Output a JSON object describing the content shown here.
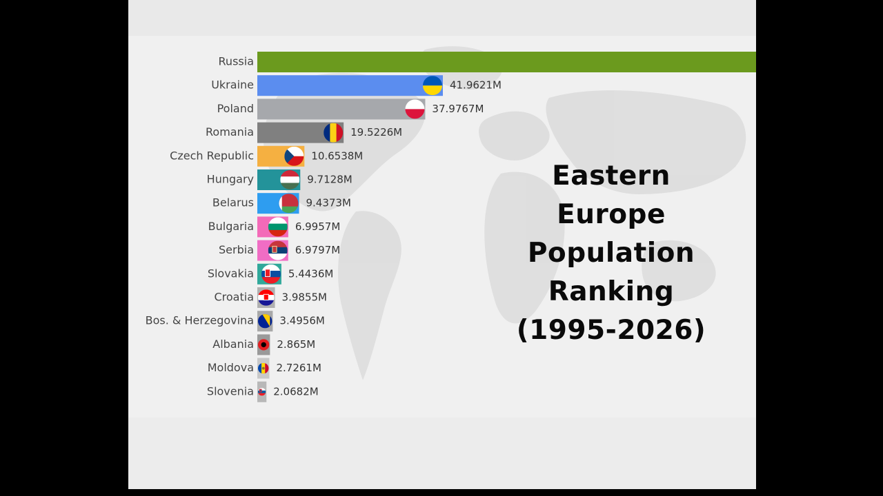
{
  "title_lines": [
    "Eastern",
    "Europe",
    "Population",
    "Ranking",
    "(1995-2026)"
  ],
  "chart_data": {
    "type": "bar",
    "orientation": "horizontal",
    "title": "Eastern Europe Population Ranking (1995-2026)",
    "value_unit": "M",
    "categories": [
      "Russia",
      "Ukraine",
      "Poland",
      "Romania",
      "Czech Republic",
      "Hungary",
      "Belarus",
      "Bulgaria",
      "Serbia",
      "Slovakia",
      "Croatia",
      "Bos. & Herzegovina",
      "Albania",
      "Moldova",
      "Slovenia"
    ],
    "values": [
      null,
      41.9621,
      37.9767,
      19.5226,
      10.6538,
      9.7128,
      9.4373,
      6.9957,
      6.9797,
      5.4436,
      3.9855,
      3.4956,
      2.865,
      2.7261,
      2.0682
    ],
    "value_labels": [
      "",
      "41.9621M",
      "37.9767M",
      "19.5226M",
      "10.6538M",
      "9.7128M",
      "9.4373M",
      "6.9957M",
      "6.9797M",
      "5.4436M",
      "3.9855M",
      "3.4956M",
      "2.865M",
      "2.7261M",
      "2.0682M"
    ],
    "colors": [
      "#6b9a1e",
      "#5b8def",
      "#a6a8ac",
      "#808080",
      "#f5b041",
      "#23939a",
      "#2e9df0",
      "#f36ab8",
      "#f06dc4",
      "#30a89a",
      "#b0b0b0",
      "#a8a8a8",
      "#9a9a9a",
      "#c8c8c8",
      "#b8b8b8"
    ],
    "flags": [
      "",
      "ukraine",
      "poland",
      "romania",
      "czech",
      "hungary",
      "belarus",
      "bulgaria",
      "serbia",
      "slovakia",
      "croatia",
      "bosnia",
      "albania",
      "moldova",
      "slovenia"
    ],
    "bar_extends_past_view": [
      true,
      false,
      false,
      false,
      false,
      false,
      false,
      false,
      false,
      false,
      false,
      false,
      false,
      false,
      false
    ],
    "grid": false,
    "legend": "none"
  }
}
